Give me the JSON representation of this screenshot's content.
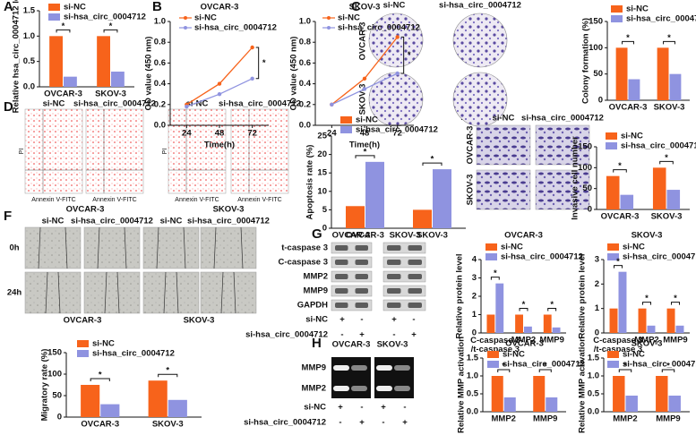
{
  "panel_labels": [
    "A",
    "B",
    "C",
    "D",
    "E",
    "F",
    "G",
    "H"
  ],
  "colony": {
    "columns": [
      "si-NC",
      "si-hsa_circ_0004712"
    ],
    "rows": [
      "OVCAR-3",
      "SKOV-3"
    ]
  },
  "flow": {
    "columns": [
      "si-NC",
      "si-hsa_circ_0004712",
      "si-NC",
      "si-hsa_circ_0004712"
    ],
    "x_label": "Annexin V-FITC",
    "y_label": "PI",
    "groups": [
      "OVCAR-3",
      "SKOV-3"
    ]
  },
  "invasion": {
    "columns": [
      "si-NC",
      "si-hsa_circ_0004712"
    ],
    "rows": [
      "OVCAR-3",
      "SKOV-3"
    ]
  },
  "wound": {
    "columns": [
      "si-NC",
      "si-hsa_circ_0004712",
      "si-NC",
      "si-hsa_circ_0004712"
    ],
    "rows": [
      "0h",
      "24h"
    ],
    "groups": [
      "OVCAR-3",
      "SKOV-3"
    ]
  },
  "western": {
    "groups": [
      "OVCAR-3",
      "SKOV-3"
    ],
    "bands": [
      "t-caspase 3",
      "C-caspase 3",
      "MMP2",
      "MMP9",
      "GAPDH"
    ],
    "conditions": [
      "si-NC",
      "si-hsa_circ_0004712"
    ],
    "signs": [
      [
        "+",
        "-",
        "+",
        "-"
      ],
      [
        "-",
        "+",
        "-",
        "+"
      ]
    ]
  },
  "zymography": {
    "groups": [
      "OVCAR-3",
      "SKOV-3"
    ],
    "bands": [
      "MMP9",
      "MMP2"
    ],
    "conditions": [
      "si-NC",
      "si-hsa_circ_0004712"
    ],
    "signs": [
      [
        "+",
        "-",
        "+",
        "-"
      ],
      [
        "-",
        "+",
        "-",
        "+"
      ]
    ]
  },
  "chart_data": [
    {
      "type": "bar",
      "ylabel": "Relative hsa_circ_0004712 level",
      "categories": [
        "OVCAR-3",
        "SKOV-3"
      ],
      "series": [
        {
          "name": "si-NC",
          "color": "#f7631b",
          "values": [
            1.0,
            1.0
          ]
        },
        {
          "name": "si-hsa_circ_0004712",
          "color": "#8f93e0",
          "values": [
            0.2,
            0.3
          ]
        }
      ],
      "ylim": [
        0,
        1.5
      ],
      "yticks": [
        {
          "value": 0,
          "label": "0.0"
        },
        0.5,
        {
          "value": 1,
          "label": "1.0"
        },
        1.5
      ],
      "annotations": [
        "*",
        "*"
      ]
    },
    {
      "type": "line",
      "title": "OVCAR-3",
      "xlabel": "Time(h)",
      "ylabel": "OD value (450 nm)",
      "x": [
        24,
        48,
        72
      ],
      "series": [
        {
          "name": "si-NC",
          "color": "#f7631b",
          "values": [
            0.2,
            0.4,
            0.75
          ]
        },
        {
          "name": "si-hsa_circ_0004712",
          "color": "#8f93e0",
          "values": [
            0.18,
            0.3,
            0.45
          ]
        }
      ],
      "xlim": [
        12,
        84
      ],
      "xticks": [
        24,
        48,
        72
      ],
      "ylim": [
        0,
        1
      ],
      "yticks": [
        {
          "value": 0,
          "label": "0.0"
        },
        0.2,
        0.4,
        0.6,
        0.8,
        {
          "value": 1,
          "label": "1.0"
        }
      ],
      "annotations": [
        "*"
      ]
    },
    {
      "type": "line",
      "title": "SKOV-3",
      "xlabel": "Time(h)",
      "ylabel": "OD value (450 nm)",
      "x": [
        24,
        48,
        72
      ],
      "series": [
        {
          "name": "si-NC",
          "color": "#f7631b",
          "values": [
            0.2,
            0.45,
            0.85
          ]
        },
        {
          "name": "si-hsa_circ_0004712",
          "color": "#8f93e0",
          "values": [
            0.2,
            0.35,
            0.5
          ]
        }
      ],
      "xlim": [
        12,
        84
      ],
      "xticks": [
        24,
        48,
        72
      ],
      "ylim": [
        0,
        1
      ],
      "yticks": [
        {
          "value": 0,
          "label": "0.0"
        },
        0.2,
        0.4,
        0.6,
        0.8,
        {
          "value": 1,
          "label": "1.0"
        }
      ],
      "annotations": [
        "*"
      ]
    },
    {
      "type": "bar",
      "ylabel": "Colony formation (%)",
      "categories": [
        "OVCAR-3",
        "SKOV-3"
      ],
      "series": [
        {
          "name": "si-NC",
          "color": "#f7631b",
          "values": [
            100,
            100
          ]
        },
        {
          "name": "si-hsa_circ_0004712",
          "color": "#8f93e0",
          "values": [
            40,
            50
          ]
        }
      ],
      "ylim": [
        0,
        150
      ],
      "yticks": [
        0,
        50,
        100,
        150
      ],
      "annotations": [
        "*",
        "*"
      ]
    },
    {
      "type": "bar",
      "ylabel": "Apoptosis rate (%)",
      "categories": [
        "OVCAR-3",
        "SKOV-3"
      ],
      "series": [
        {
          "name": "si-NC",
          "color": "#f7631b",
          "values": [
            6,
            5
          ]
        },
        {
          "name": "si-hsa_circ_0004712",
          "color": "#8f93e0",
          "values": [
            18,
            16
          ]
        }
      ],
      "ylim": [
        0,
        25
      ],
      "yticks": [
        0,
        5,
        10,
        15,
        20,
        25
      ],
      "annotations": [
        "*",
        "*"
      ]
    },
    {
      "type": "bar",
      "ylabel": "Invasive cell number",
      "categories": [
        "OVCAR-3",
        "SKOV-3"
      ],
      "series": [
        {
          "name": "si-NC",
          "color": "#f7631b",
          "values": [
            80,
            100
          ]
        },
        {
          "name": "si-hsa_circ_0004712",
          "color": "#8f93e0",
          "values": [
            35,
            47
          ]
        }
      ],
      "ylim": [
        0,
        150
      ],
      "yticks": [
        0,
        50,
        100,
        150
      ],
      "annotations": [
        "*",
        "*"
      ]
    },
    {
      "type": "bar",
      "ylabel": "Migratory rate (%)",
      "categories": [
        "OVCAR-3",
        "SKOV-3"
      ],
      "series": [
        {
          "name": "si-NC",
          "color": "#f7631b",
          "values": [
            75,
            85
          ]
        },
        {
          "name": "si-hsa_circ_0004712",
          "color": "#8f93e0",
          "values": [
            30,
            40
          ]
        }
      ],
      "ylim": [
        0,
        150
      ],
      "yticks": [
        0,
        50,
        100,
        150
      ],
      "annotations": [
        "*",
        "*"
      ]
    },
    {
      "type": "bar",
      "title": "OVCAR-3",
      "ylabel": "Relative protein level",
      "categories": [
        "C-caspase 3\n/t-caspase 3",
        "MMP2",
        "MMP9"
      ],
      "series": [
        {
          "name": "si-NC",
          "color": "#f7631b",
          "values": [
            1,
            1,
            1
          ]
        },
        {
          "name": "si-hsa_circ_0004712",
          "color": "#8f93e0",
          "values": [
            2.7,
            0.35,
            0.3
          ]
        }
      ],
      "ylim": [
        0,
        4
      ],
      "yticks": [
        0,
        1,
        2,
        3,
        4
      ],
      "annotations": [
        "*",
        "*",
        "*"
      ]
    },
    {
      "type": "bar",
      "title": "SKOV-3",
      "ylabel": "Relative protein level",
      "categories": [
        "C-caspase 3\n/t-caspase 3",
        "MMP2",
        "MMP9"
      ],
      "series": [
        {
          "name": "si-NC",
          "color": "#f7631b",
          "values": [
            1,
            1,
            1
          ]
        },
        {
          "name": "si-hsa_circ_0004712",
          "color": "#8f93e0",
          "values": [
            2.5,
            0.3,
            0.3
          ]
        }
      ],
      "ylim": [
        0,
        3
      ],
      "yticks": [
        0,
        1,
        2,
        3
      ],
      "annotations": [
        "*",
        "*",
        "*"
      ]
    },
    {
      "type": "bar",
      "title": "OVCAR-3",
      "ylabel": "Relative MMP activation",
      "categories": [
        "MMP2",
        "MMP9"
      ],
      "series": [
        {
          "name": "si-NC",
          "color": "#f7631b",
          "values": [
            1,
            1
          ]
        },
        {
          "name": "si-hsa_circ_0004712",
          "color": "#8f93e0",
          "values": [
            0.4,
            0.4
          ]
        }
      ],
      "ylim": [
        0,
        1.5
      ],
      "yticks": [
        {
          "value": 0,
          "label": "0.0"
        },
        0.5,
        {
          "value": 1,
          "label": "1.0"
        },
        1.5
      ],
      "annotations": [
        "*",
        "*"
      ]
    },
    {
      "type": "bar",
      "title": "SKOV-3",
      "ylabel": "Relative MMP activation",
      "categories": [
        "MMP2",
        "MMP9"
      ],
      "series": [
        {
          "name": "si-NC",
          "color": "#f7631b",
          "values": [
            1,
            1
          ]
        },
        {
          "name": "si-hsa_circ_0004712",
          "color": "#8f93e0",
          "values": [
            0.45,
            0.45
          ]
        }
      ],
      "ylim": [
        0,
        1.5
      ],
      "yticks": [
        {
          "value": 0,
          "label": "0.0"
        },
        0.5,
        {
          "value": 1,
          "label": "1.0"
        },
        1.5
      ],
      "annotations": [
        "*",
        "*"
      ]
    }
  ]
}
